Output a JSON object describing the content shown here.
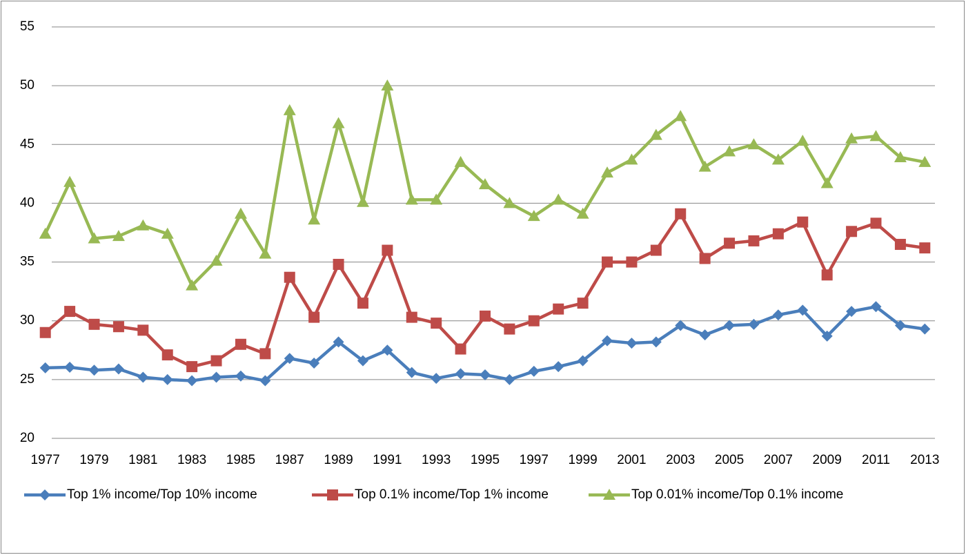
{
  "chart_data": {
    "type": "line",
    "categories": [
      "1977",
      null,
      "1979",
      null,
      "1981",
      null,
      "1983",
      null,
      "1985",
      null,
      "1987",
      null,
      "1989",
      null,
      "1991",
      null,
      "1993",
      null,
      "1995",
      null,
      "1997",
      null,
      "1999",
      null,
      "2001",
      null,
      "2003",
      null,
      "2005",
      null,
      "2007",
      null,
      "2009",
      null,
      "2011",
      null,
      "2013"
    ],
    "series": [
      {
        "name": "Top 1% income/Top 10% income",
        "color": "#4a7ebb",
        "marker": "diamond",
        "values": [
          26.0,
          26.05,
          25.8,
          25.9,
          25.2,
          25.0,
          24.9,
          25.2,
          25.3,
          24.9,
          26.8,
          26.4,
          28.2,
          26.6,
          27.5,
          25.6,
          25.1,
          25.5,
          25.4,
          25.0,
          25.7,
          26.1,
          26.6,
          28.3,
          28.1,
          28.2,
          29.6,
          28.8,
          29.6,
          29.7,
          30.5,
          30.9,
          28.7,
          30.8,
          31.2,
          29.6,
          29.3
        ]
      },
      {
        "name": "Top 0.1% income/Top 1% income",
        "color": "#be4b48",
        "marker": "square",
        "values": [
          29.0,
          30.8,
          29.7,
          29.5,
          29.2,
          27.1,
          26.1,
          26.6,
          28.0,
          27.2,
          33.7,
          30.3,
          34.8,
          31.5,
          36.0,
          30.3,
          29.8,
          27.6,
          30.4,
          29.3,
          30.0,
          31.0,
          31.5,
          35.0,
          35.0,
          36.0,
          39.1,
          35.3,
          36.6,
          36.8,
          37.4,
          38.4,
          33.9,
          37.6,
          38.3,
          36.5,
          36.2
        ]
      },
      {
        "name": "Top 0.01% income/Top 0.1% income",
        "color": "#98b954",
        "marker": "triangle",
        "values": [
          37.4,
          41.8,
          37.0,
          37.2,
          38.1,
          37.4,
          33.0,
          35.1,
          39.1,
          35.7,
          47.9,
          38.6,
          46.8,
          40.1,
          50.0,
          40.3,
          40.3,
          43.5,
          41.6,
          40.0,
          38.9,
          40.3,
          39.1,
          42.6,
          43.7,
          45.8,
          47.4,
          43.1,
          44.4,
          45.0,
          43.7,
          45.3,
          41.7,
          45.5,
          45.7,
          43.9,
          43.5
        ]
      }
    ],
    "ylim": [
      20,
      55
    ],
    "yticks": [
      20,
      25,
      30,
      35,
      40,
      45,
      50,
      55
    ],
    "grid": true,
    "legend": "bottom"
  }
}
